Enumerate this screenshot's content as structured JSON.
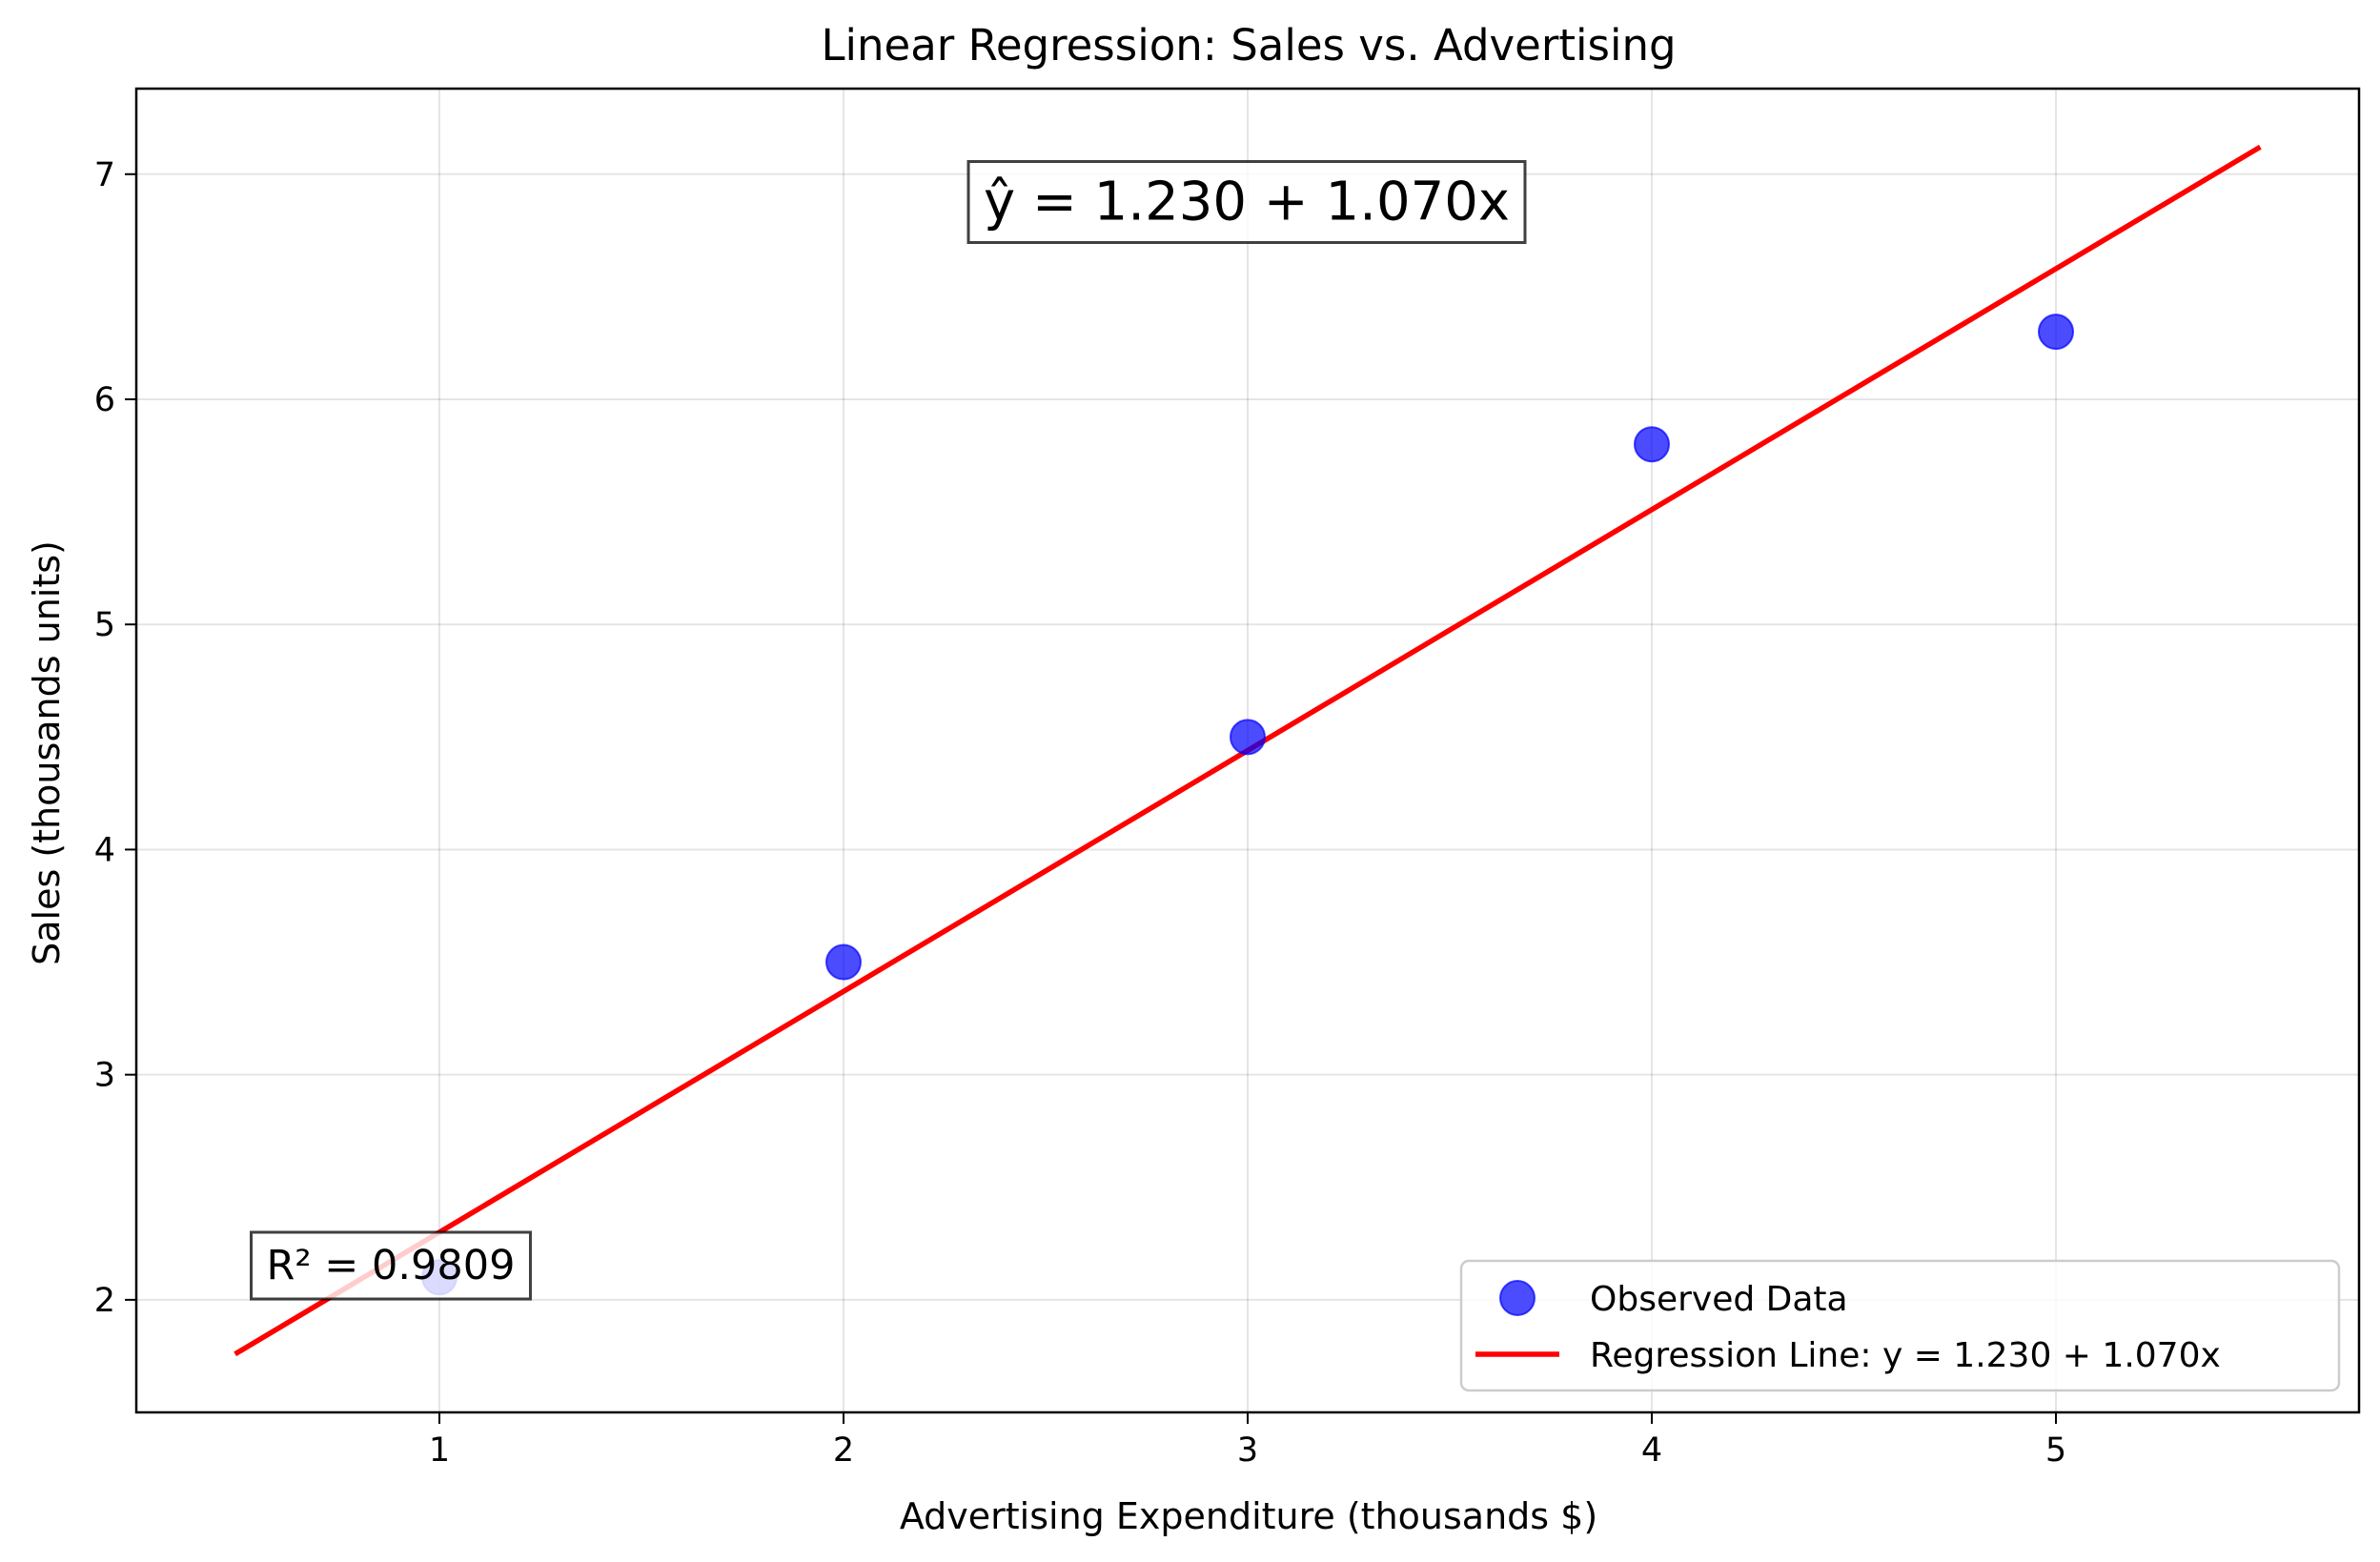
{
  "chart_data": {
    "type": "scatter",
    "title": "Linear Regression: Sales vs. Advertising",
    "xlabel": "Advertising Expenditure (thousands $)",
    "ylabel": "Sales (thousands units)",
    "xlim": [
      0.25,
      5.75
    ],
    "ylim": [
      1.5,
      7.38
    ],
    "xticks": [
      1,
      2,
      3,
      4,
      5
    ],
    "yticks": [
      2,
      3,
      4,
      5,
      6,
      7
    ],
    "grid": true,
    "series": [
      {
        "name": "Observed Data",
        "kind": "scatter",
        "color": "#0000ff",
        "x": [
          1,
          2,
          3,
          4,
          5
        ],
        "y": [
          2.1,
          3.5,
          4.5,
          5.8,
          6.3
        ]
      },
      {
        "name": "Regression Line: y = 1.230 + 1.070x",
        "kind": "line",
        "color": "#ff0000",
        "intercept": 1.23,
        "slope": 1.07,
        "x_range": [
          0.5,
          5.5
        ]
      }
    ],
    "annotations": [
      {
        "id": "equation",
        "text": "ŷ = 1.230 + 1.070x"
      },
      {
        "id": "r2",
        "text": "R² = 0.9809"
      }
    ],
    "legend": {
      "position": "lower-right",
      "entries": [
        "Observed Data",
        "Regression Line: y = 1.230 + 1.070x"
      ]
    }
  }
}
